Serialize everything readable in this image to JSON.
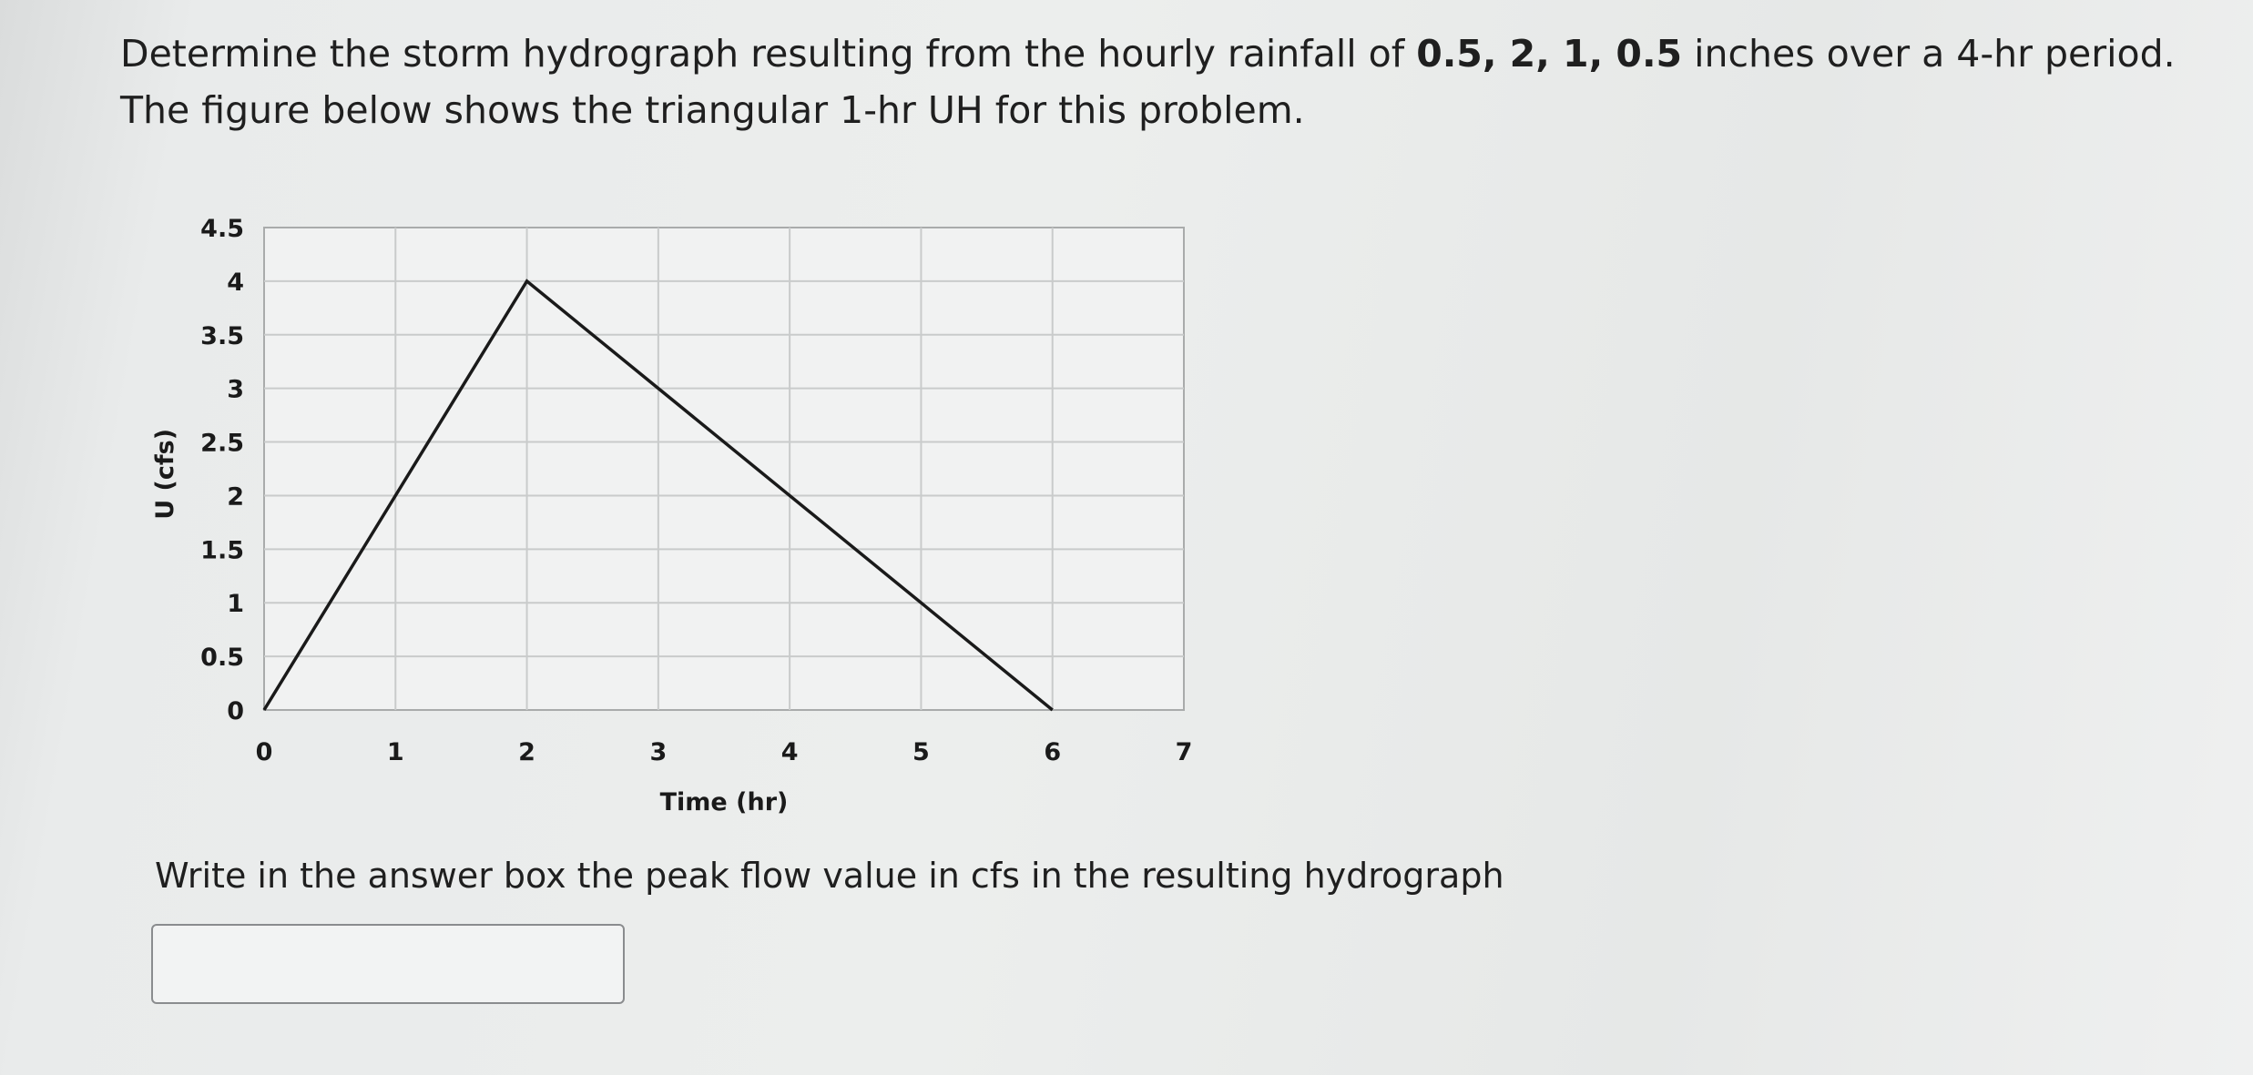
{
  "question": {
    "line1_pre": "Determine the storm hydrograph resulting from the hourly rainfall of ",
    "line1_bold": "0.5, 2, 1, 0.5",
    "line1_post": " inches over a 4-hr period.",
    "line2": "The figure below shows the triangular 1-hr UH for this problem."
  },
  "chart_data": {
    "type": "line",
    "title": "",
    "xlabel": "Time (hr)",
    "ylabel": "U (cfs)",
    "xlim": [
      0,
      7
    ],
    "ylim": [
      0,
      4.5
    ],
    "x_ticks": [
      "0",
      "1",
      "2",
      "3",
      "4",
      "5",
      "6",
      "7"
    ],
    "y_ticks": [
      "0",
      "0.5",
      "1",
      "1.5",
      "2",
      "2.5",
      "3",
      "3.5",
      "4",
      "4.5"
    ],
    "grid": true,
    "series": [
      {
        "x": [
          0,
          2,
          6
        ],
        "y": [
          0,
          4,
          0
        ]
      }
    ],
    "colors": {
      "line": "#1a1a1a",
      "grid": "#c9cbcb",
      "frame": "#a9abab"
    }
  },
  "answer": {
    "prompt": "Write in the answer box the peak flow value in cfs in the resulting hydrograph",
    "value": ""
  }
}
